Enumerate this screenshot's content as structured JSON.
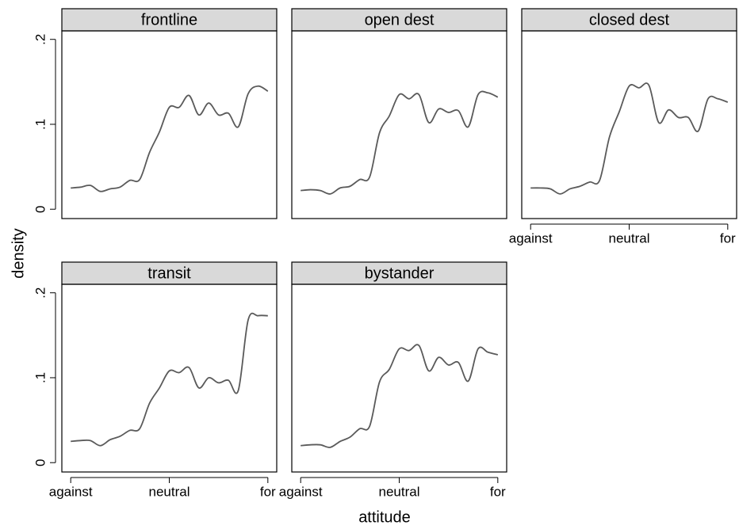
{
  "axis_labels": {
    "y": "density",
    "x": "attitude"
  },
  "chart_data": [
    {
      "type": "line",
      "title": "frontline",
      "color": "#5a5a5a",
      "x": [
        0,
        0.5,
        1,
        1.5,
        2,
        2.5,
        3,
        3.5,
        4,
        4.5,
        5,
        5.5,
        6,
        6.5,
        7,
        7.5,
        8,
        8.5,
        9,
        9.5,
        10
      ],
      "values": [
        0.025,
        0.026,
        0.028,
        0.021,
        0.024,
        0.026,
        0.034,
        0.035,
        0.067,
        0.091,
        0.12,
        0.12,
        0.134,
        0.111,
        0.125,
        0.111,
        0.113,
        0.097,
        0.136,
        0.145,
        0.139
      ],
      "xlim": [
        -0.45,
        10.45
      ],
      "ylim": [
        -0.011,
        0.21
      ],
      "yticks": [
        0,
        {
          "value": 0.1,
          "label": ".1"
        },
        {
          "value": 0.2,
          "label": ".2"
        }
      ]
    },
    {
      "type": "line",
      "title": "open dest",
      "color": "#5a5a5a",
      "x": [
        0,
        0.5,
        1,
        1.5,
        2,
        2.5,
        3,
        3.5,
        4,
        4.5,
        5,
        5.5,
        6,
        6.5,
        7,
        7.5,
        8,
        8.5,
        9,
        9.5,
        10
      ],
      "values": [
        0.022,
        0.023,
        0.022,
        0.018,
        0.025,
        0.027,
        0.035,
        0.038,
        0.09,
        0.11,
        0.135,
        0.13,
        0.135,
        0.102,
        0.118,
        0.114,
        0.116,
        0.097,
        0.135,
        0.137,
        0.132
      ],
      "xlim": [
        -0.45,
        10.45
      ],
      "ylim": [
        -0.011,
        0.21
      ]
    },
    {
      "type": "line",
      "title": "closed dest",
      "color": "#5a5a5a",
      "x": [
        0,
        0.5,
        1,
        1.5,
        2,
        2.5,
        3,
        3.5,
        4,
        4.5,
        5,
        5.5,
        6,
        6.5,
        7,
        7.5,
        8,
        8.5,
        9,
        9.5,
        10
      ],
      "values": [
        0.025,
        0.025,
        0.024,
        0.018,
        0.024,
        0.027,
        0.032,
        0.034,
        0.085,
        0.115,
        0.145,
        0.143,
        0.146,
        0.102,
        0.117,
        0.108,
        0.108,
        0.092,
        0.13,
        0.13,
        0.126
      ],
      "xlim": [
        -0.45,
        10.45
      ],
      "ylim": [
        -0.011,
        0.21
      ],
      "xticks": [
        {
          "value": 0,
          "label": "against"
        },
        {
          "value": 5,
          "label": "neutral"
        },
        {
          "value": 10,
          "label": "for"
        }
      ]
    },
    {
      "type": "line",
      "title": "transit",
      "color": "#5a5a5a",
      "x": [
        0,
        0.5,
        1,
        1.5,
        2,
        2.5,
        3,
        3.5,
        4,
        4.5,
        5,
        5.5,
        6,
        6.5,
        7,
        7.5,
        8,
        8.5,
        9,
        9.5,
        10
      ],
      "values": [
        0.025,
        0.026,
        0.026,
        0.02,
        0.027,
        0.031,
        0.038,
        0.04,
        0.07,
        0.088,
        0.108,
        0.106,
        0.112,
        0.088,
        0.1,
        0.094,
        0.097,
        0.085,
        0.168,
        0.173,
        0.173
      ],
      "xlim": [
        -0.45,
        10.45
      ],
      "ylim": [
        -0.011,
        0.21
      ],
      "xticks": [
        {
          "value": 0,
          "label": "against"
        },
        {
          "value": 5,
          "label": "neutral"
        },
        {
          "value": 10,
          "label": "for"
        }
      ],
      "yticks": [
        0,
        {
          "value": 0.1,
          "label": ".1"
        },
        {
          "value": 0.2,
          "label": ".2"
        }
      ]
    },
    {
      "type": "line",
      "title": "bystander",
      "color": "#5a5a5a",
      "x": [
        0,
        0.5,
        1,
        1.5,
        2,
        2.5,
        3,
        3.5,
        4,
        4.5,
        5,
        5.5,
        6,
        6.5,
        7,
        7.5,
        8,
        8.5,
        9,
        9.5,
        10
      ],
      "values": [
        0.02,
        0.021,
        0.021,
        0.018,
        0.025,
        0.03,
        0.04,
        0.043,
        0.095,
        0.11,
        0.134,
        0.132,
        0.138,
        0.108,
        0.124,
        0.115,
        0.118,
        0.096,
        0.134,
        0.13,
        0.127
      ],
      "xlim": [
        -0.45,
        10.45
      ],
      "ylim": [
        -0.011,
        0.21
      ],
      "xticks": [
        {
          "value": 0,
          "label": "against"
        },
        {
          "value": 5,
          "label": "neutral"
        },
        {
          "value": 10,
          "label": "for"
        }
      ]
    }
  ]
}
